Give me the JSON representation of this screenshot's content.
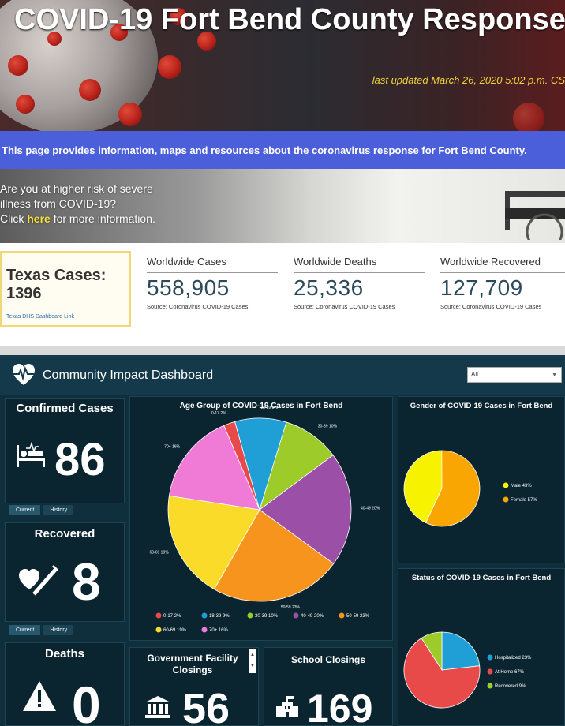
{
  "hero": {
    "title": "COVID-19 Fort Bend County Response",
    "updated": "last updated March 26, 2020 5:02  p.m. CS"
  },
  "info_bar": {
    "text": "This page provides information, maps and resources about the coronavirus response for Fort Bend County."
  },
  "risk": {
    "line1": "Are you at higher risk of severe",
    "line2": "illness from COVID-19?",
    "click": "Click ",
    "link": "here",
    "after": " for more information."
  },
  "texas": {
    "title": "Texas Cases:",
    "value": "1396",
    "link": "Texas DHS Dashboard Link"
  },
  "stats": [
    {
      "label": "Worldwide Cases",
      "value": "558,905",
      "source": "Source: Coronavirus COVID-19 Cases"
    },
    {
      "label": "Worldwide Deaths",
      "value": "25,336",
      "source": "Source: Coronavirus COVID-19 Cases"
    },
    {
      "label": "Worldwide Recovered",
      "value": "127,709",
      "source": "Source: Coronavirus COVID-19 Cases"
    }
  ],
  "dashboard": {
    "title": "Community Impact Dashboard",
    "select_value": "All",
    "confirmed": {
      "title": "Confirmed Cases",
      "value": "86",
      "tab_current": "Current",
      "tab_history": "History"
    },
    "recovered": {
      "title": "Recovered",
      "value": "8",
      "tab_current": "Current",
      "tab_history": "History"
    },
    "deaths": {
      "title": "Deaths",
      "value": "0"
    },
    "gov": {
      "title": "Government Facility Closings",
      "value": "56"
    },
    "school": {
      "title": "School Closings",
      "value": "169"
    }
  },
  "chart_data": [
    {
      "type": "pie",
      "title": "Age Group of COVID-19 Cases in Fort Bend",
      "categories": [
        "0-17",
        "18-39",
        "30-39",
        "40-49",
        "50-59",
        "60-69",
        "70+"
      ],
      "values": [
        2,
        9,
        10,
        20,
        23,
        19,
        16
      ],
      "slice_labels": [
        "0-17 2%",
        "18-39 9%",
        "30-39 10%",
        "40-49 20%",
        "50-59 23%",
        "60-69 19%",
        "70+ 16%"
      ],
      "legend_labels": [
        "0-17    2%",
        "18-39    9%",
        "30-39 10%",
        "40-49 20%",
        "50-59 23%",
        "60-69 19%",
        "70+    16%"
      ],
      "colors": [
        "#e84a4a",
        "#1f9fd6",
        "#9ccb2a",
        "#9b4fa6",
        "#f7941d",
        "#fadb2a",
        "#f07bd6"
      ],
      "legend": "bottom"
    },
    {
      "type": "pie",
      "title": "Gender of COVID-19 Cases in Fort Bend",
      "categories": [
        "Male",
        "Female"
      ],
      "values": [
        43,
        57
      ],
      "legend_labels": [
        "Male 43%",
        "Female 57%"
      ],
      "colors": [
        "#f7f200",
        "#f9a602"
      ],
      "legend": "right"
    },
    {
      "type": "pie",
      "title": "Status of COVID-19 Cases in Fort Bend",
      "categories": [
        "Hospitalized",
        "At Home",
        "Recovered"
      ],
      "values": [
        23,
        67,
        9
      ],
      "legend_labels": [
        "Hospitalized 23%",
        "At Home 67%",
        "Recovered 9%"
      ],
      "colors": [
        "#1f9fd6",
        "#e84a4a",
        "#9ccb2a"
      ],
      "legend": "right"
    }
  ]
}
